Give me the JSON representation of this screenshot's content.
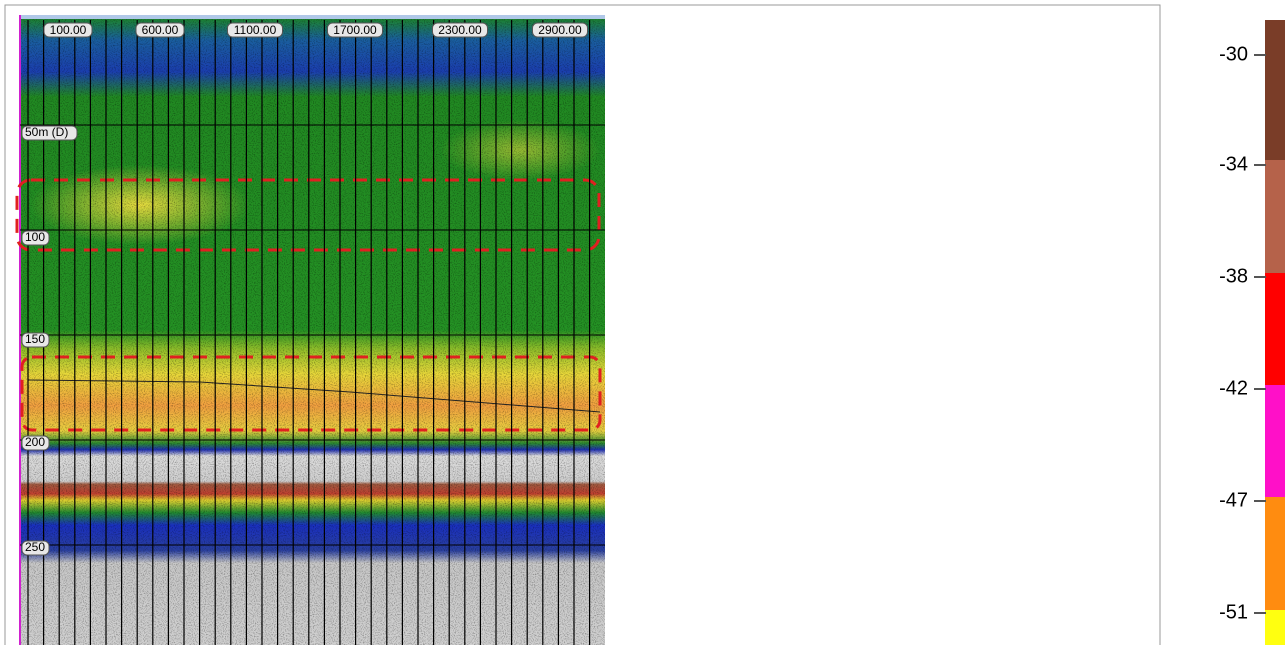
{
  "echogram": {
    "top_labels": [
      "100.00",
      "600.00",
      "1100.00",
      "1700.00",
      "2300.00",
      "2900.00"
    ],
    "depth_labels": [
      "50m (D)",
      "100",
      "150",
      "200",
      "250"
    ]
  },
  "colorbar": {
    "ticks": [
      -30,
      -34,
      -38,
      -42,
      -47,
      -51
    ]
  }
}
